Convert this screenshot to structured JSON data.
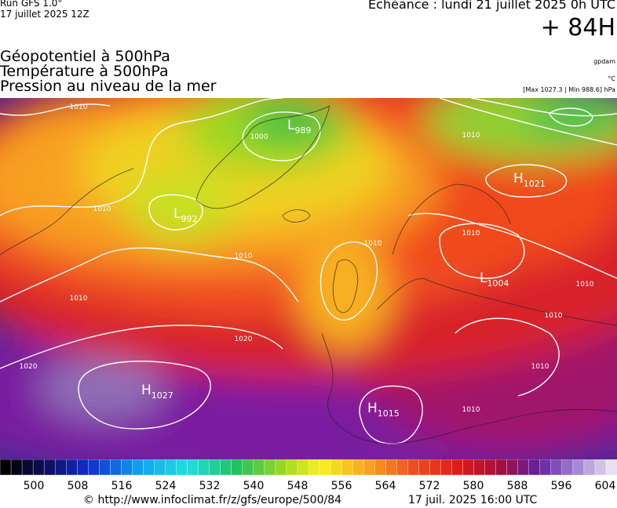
{
  "header": {
    "run": "Run GFS 1.0°",
    "run_date": "17 juillet 2025 12Z",
    "valid": "Echéance : lundi 21 juillet 2025 0h UTC",
    "lead": "+ 84H",
    "fields": [
      "Géopotentiel à 500hPa",
      "Température à 500hPa",
      "Pression au niveau de la mer"
    ],
    "units": [
      "gpdam",
      "°C",
      "[Max 1027.3 | Min 988.6] hPa"
    ]
  },
  "map": {
    "centers": [
      {
        "letter": "L",
        "value": "989"
      },
      {
        "letter": "L",
        "value": "992"
      },
      {
        "letter": "H",
        "value": "1021"
      },
      {
        "letter": "L",
        "value": "1004"
      },
      {
        "letter": "H",
        "value": "1027"
      },
      {
        "letter": "H",
        "value": "1015"
      }
    ],
    "isobar_labels": [
      "1010",
      "1010",
      "1000",
      "1010",
      "1010",
      "1010",
      "1020",
      "1020",
      "1010",
      "1010",
      "1010",
      "1010",
      "1010",
      "1010"
    ]
  },
  "colorbar": {
    "labels": [
      500,
      508,
      516,
      524,
      532,
      540,
      548,
      556,
      564,
      572,
      580,
      588,
      596,
      604
    ]
  },
  "footer": {
    "source": "© http://www.infoclimat.fr/z/gfs/europe/500/84",
    "generated": "17 juil. 2025 16:00 UTC"
  }
}
